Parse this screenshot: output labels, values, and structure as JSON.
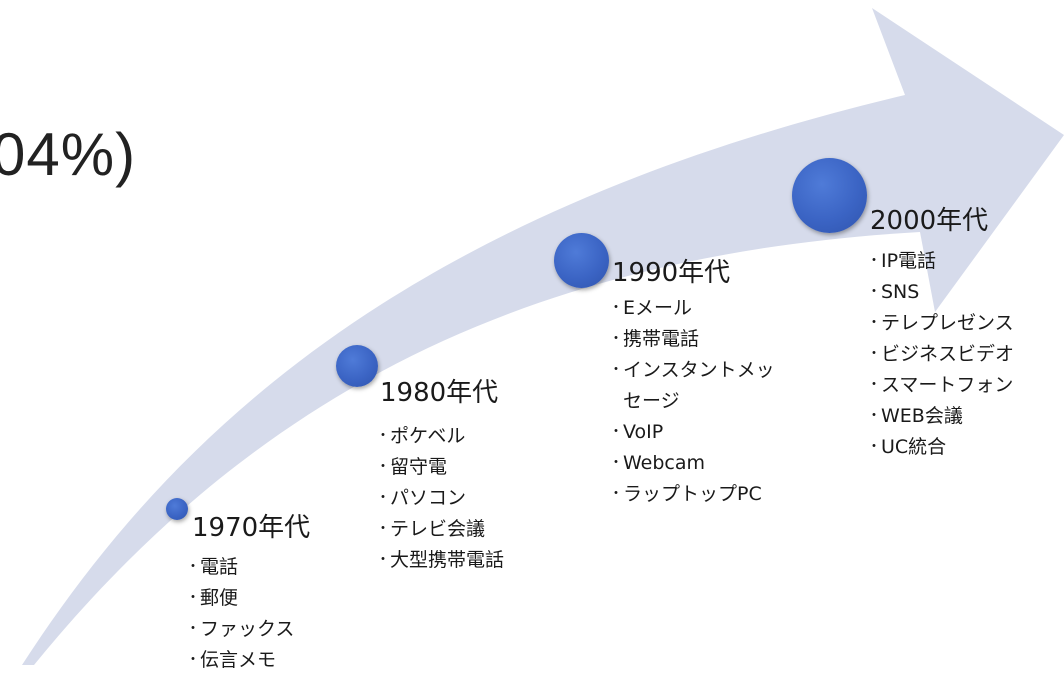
{
  "partial_title": "04%)",
  "eras": [
    {
      "label": "1970年代",
      "items": [
        "電話",
        "郵便",
        "ファックス",
        "伝言メモ"
      ]
    },
    {
      "label": "1980年代",
      "items": [
        "ポケベル",
        "留守電",
        "パソコン",
        "テレビ会議",
        "大型携帯電話"
      ]
    },
    {
      "label": "1990年代",
      "items": [
        "Eメール",
        "携帯電話",
        "インスタントメッ",
        "セージ",
        "VoIP",
        "Webcam",
        "ラップトップPC"
      ]
    },
    {
      "label": "2000年代",
      "items": [
        "IP電話",
        "SNS",
        "テレプレゼンス",
        "ビジネスビデオ",
        "スマートフォン",
        "WEB会議",
        "UC統合"
      ]
    }
  ],
  "colors": {
    "arrow": "#d6dbeb",
    "dot": "#3b64c4",
    "text": "#1a1a1a"
  }
}
